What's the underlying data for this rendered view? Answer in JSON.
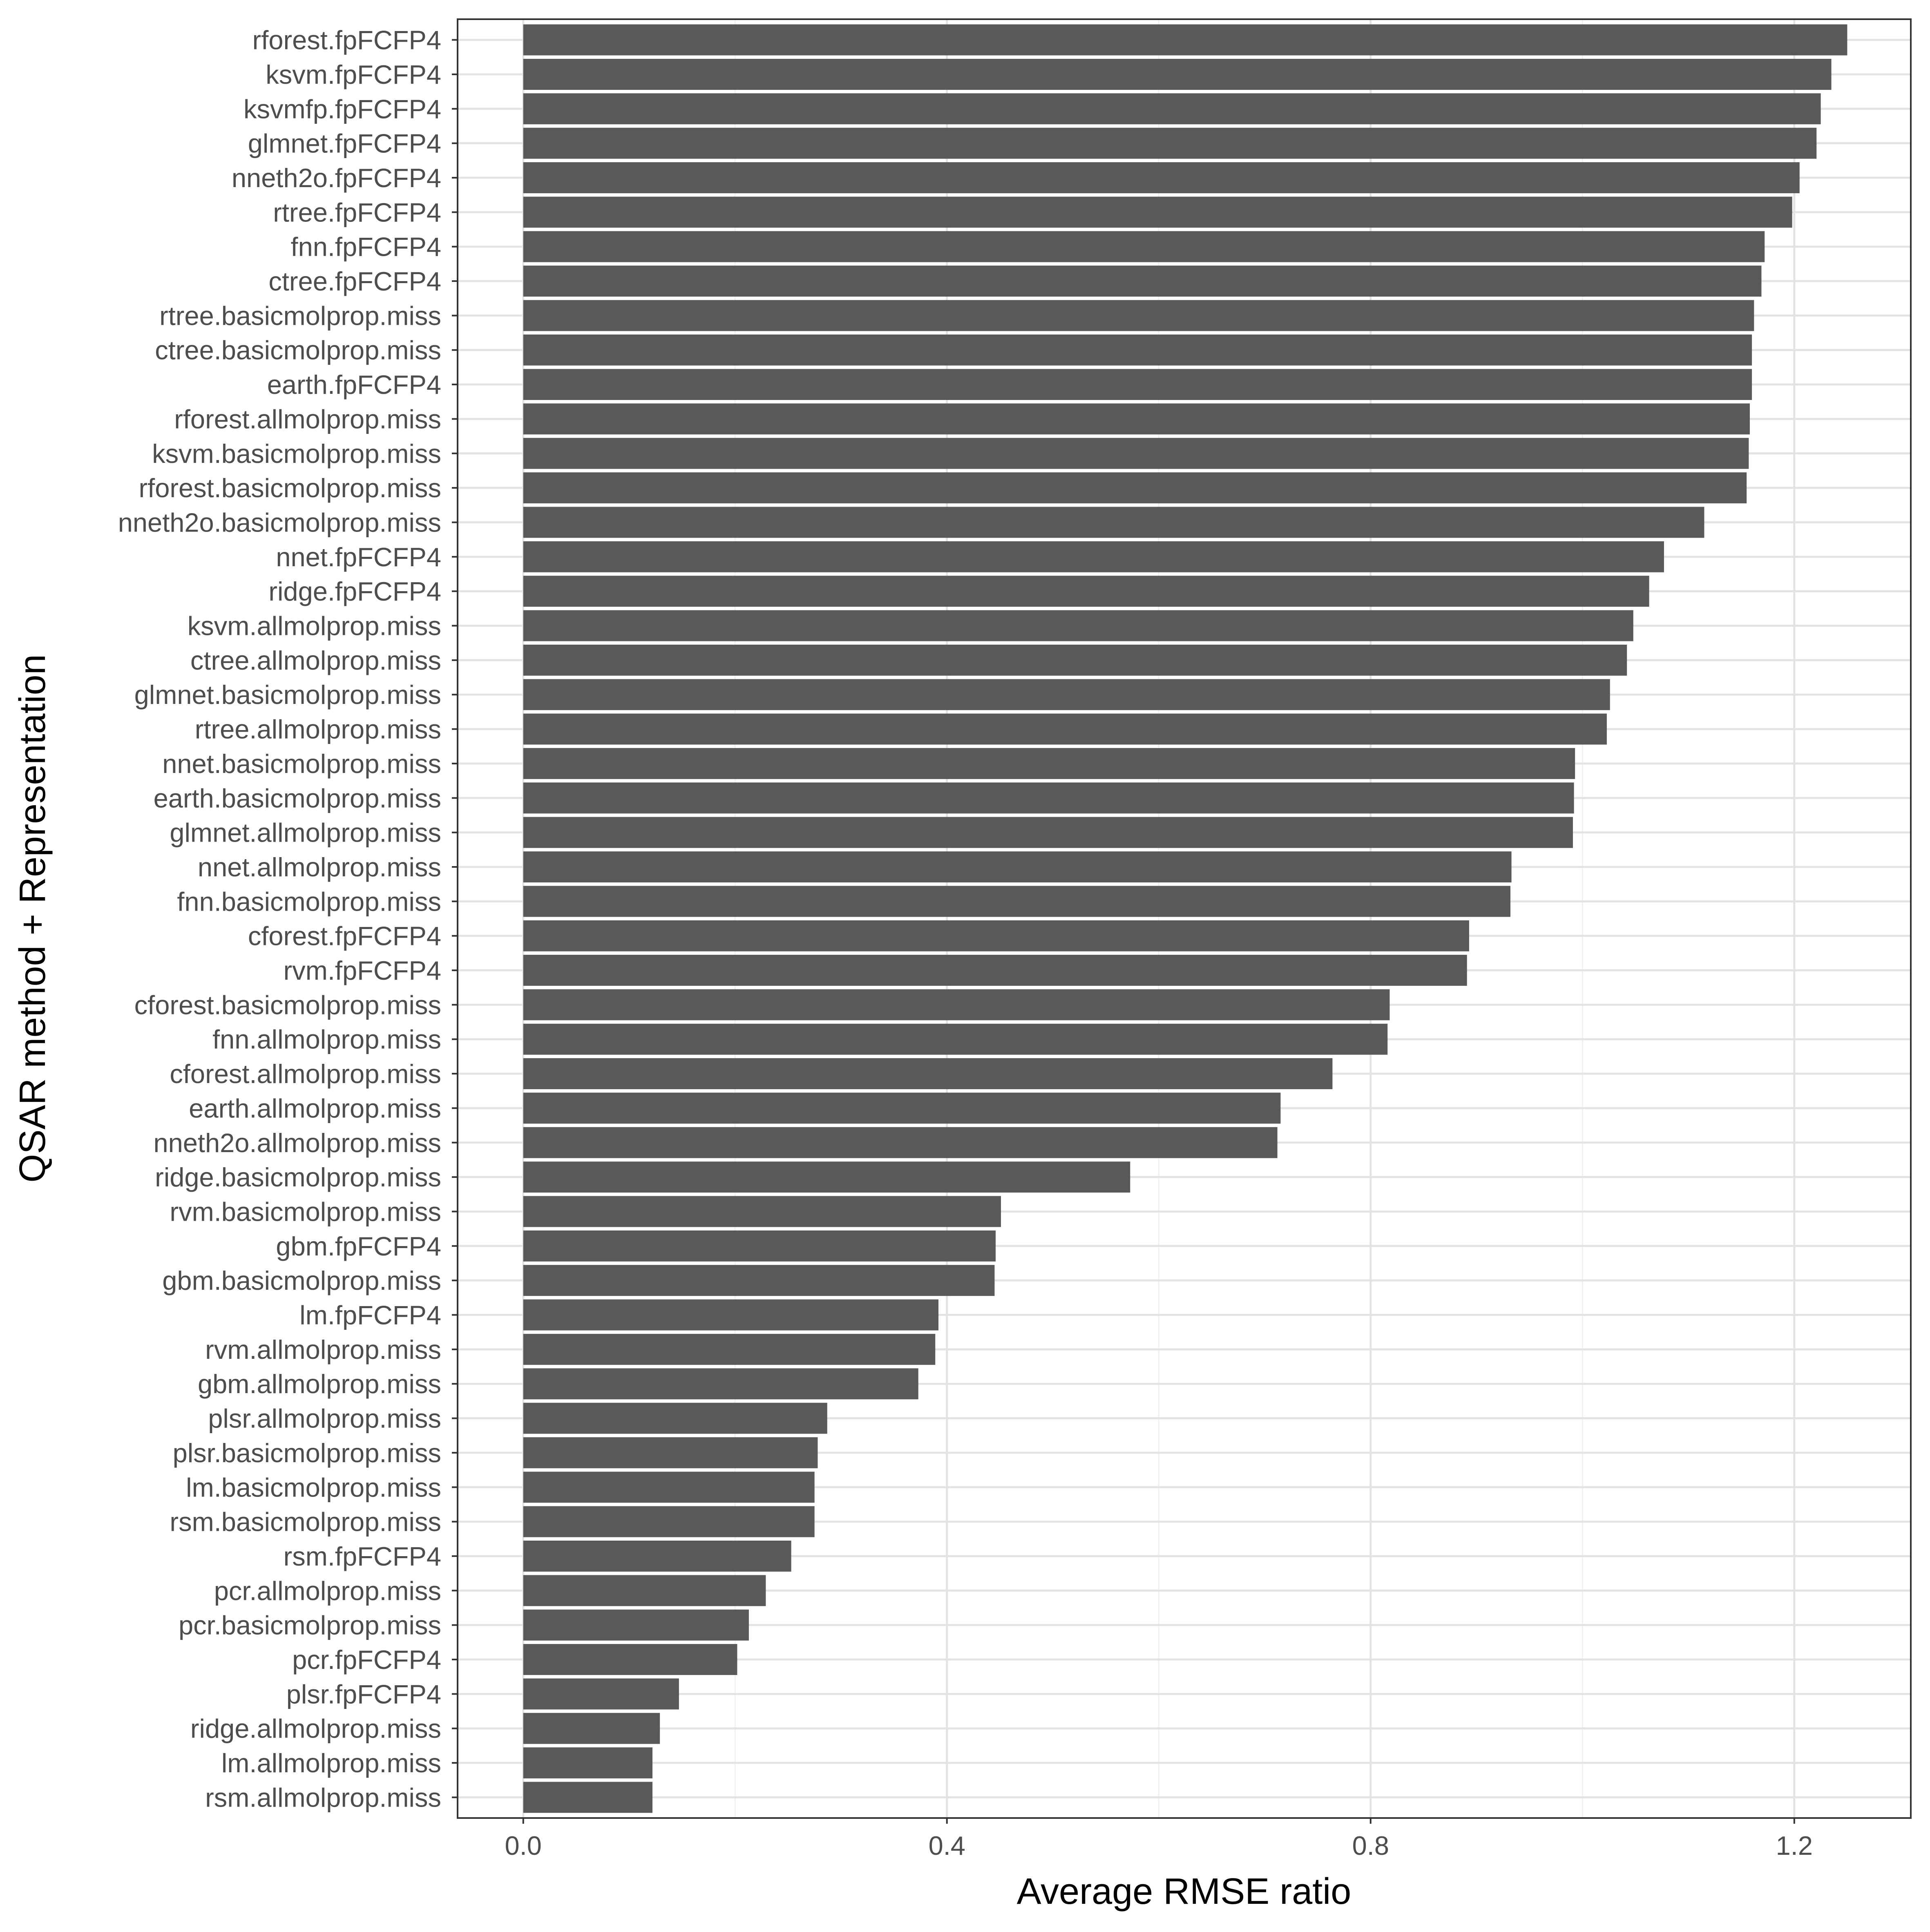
{
  "chart_data": {
    "type": "bar",
    "orientation": "horizontal",
    "xlabel": "Average RMSE ratio",
    "ylabel": "QSAR method + Representation",
    "xlim": [
      -0.062,
      1.31
    ],
    "xticks": [
      0.0,
      0.4,
      0.8,
      1.2
    ],
    "xtick_labels": [
      "0.0",
      "0.4",
      "0.8",
      "1.2"
    ],
    "grid": true,
    "bar_color": "#595959",
    "categories": [
      "rforest.fpFCFP4",
      "ksvm.fpFCFP4",
      "ksvmfp.fpFCFP4",
      "glmnet.fpFCFP4",
      "nneth2o.fpFCFP4",
      "rtree.fpFCFP4",
      "fnn.fpFCFP4",
      "ctree.fpFCFP4",
      "rtree.basicmolprop.miss",
      "ctree.basicmolprop.miss",
      "earth.fpFCFP4",
      "rforest.allmolprop.miss",
      "ksvm.basicmolprop.miss",
      "rforest.basicmolprop.miss",
      "nneth2o.basicmolprop.miss",
      "nnet.fpFCFP4",
      "ridge.fpFCFP4",
      "ksvm.allmolprop.miss",
      "ctree.allmolprop.miss",
      "glmnet.basicmolprop.miss",
      "rtree.allmolprop.miss",
      "nnet.basicmolprop.miss",
      "earth.basicmolprop.miss",
      "glmnet.allmolprop.miss",
      "nnet.allmolprop.miss",
      "fnn.basicmolprop.miss",
      "cforest.fpFCFP4",
      "rvm.fpFCFP4",
      "cforest.basicmolprop.miss",
      "fnn.allmolprop.miss",
      "cforest.allmolprop.miss",
      "earth.allmolprop.miss",
      "nneth2o.allmolprop.miss",
      "ridge.basicmolprop.miss",
      "rvm.basicmolprop.miss",
      "gbm.fpFCFP4",
      "gbm.basicmolprop.miss",
      "lm.fpFCFP4",
      "rvm.allmolprop.miss",
      "gbm.allmolprop.miss",
      "plsr.allmolprop.miss",
      "plsr.basicmolprop.miss",
      "lm.basicmolprop.miss",
      "rsm.basicmolprop.miss",
      "rsm.fpFCFP4",
      "pcr.allmolprop.miss",
      "pcr.basicmolprop.miss",
      "pcr.fpFCFP4",
      "plsr.fpFCFP4",
      "ridge.allmolprop.miss",
      "lm.allmolprop.miss",
      "rsm.allmolprop.miss"
    ],
    "values": [
      1.25,
      1.235,
      1.225,
      1.221,
      1.205,
      1.198,
      1.172,
      1.169,
      1.162,
      1.16,
      1.16,
      1.158,
      1.157,
      1.155,
      1.115,
      1.077,
      1.063,
      1.048,
      1.042,
      1.026,
      1.023,
      0.993,
      0.992,
      0.991,
      0.933,
      0.932,
      0.893,
      0.891,
      0.818,
      0.816,
      0.764,
      0.715,
      0.712,
      0.573,
      0.451,
      0.446,
      0.445,
      0.392,
      0.389,
      0.373,
      0.287,
      0.278,
      0.275,
      0.275,
      0.253,
      0.229,
      0.213,
      0.202,
      0.147,
      0.129,
      0.122,
      0.122
    ]
  }
}
